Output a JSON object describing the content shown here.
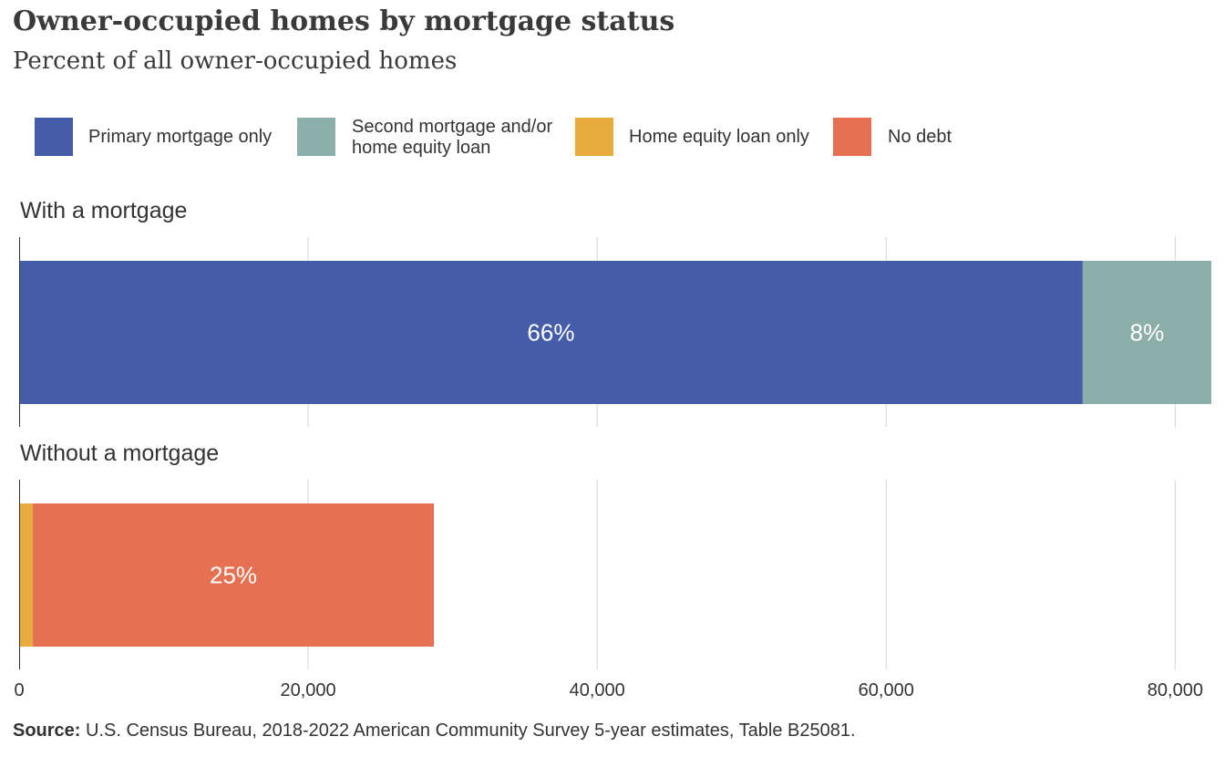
{
  "title": "Owner-occupied  homes by mortgage status",
  "subtitle": "Percent of all owner-occupied homes",
  "colors": {
    "primary": "#455ca9",
    "second": "#8caea9",
    "equity": "#e8ab3e",
    "nodebt": "#e57152",
    "grid": "#d4d4d4",
    "axis": "#333333"
  },
  "legend": [
    {
      "label": "Primary mortgage only",
      "color": "#455ca9"
    },
    {
      "label": "Second mortgage and/or\nhome equity loan",
      "color": "#8caea9"
    },
    {
      "label": "Home equity loan only",
      "color": "#e8ab3e"
    },
    {
      "label": "No debt",
      "color": "#e57152"
    }
  ],
  "panels": [
    {
      "title": "With a mortgage"
    },
    {
      "title": "Without a mortgage"
    }
  ],
  "source": {
    "label": "Source:",
    "text": " U.S. Census Bureau,  2018-2022  American Community Survey 5-year estimates, Table B25081."
  },
  "chart_data": {
    "type": "bar",
    "orientation": "horizontal",
    "stacked": true,
    "xlim": [
      0,
      82500
    ],
    "xticks": [
      0,
      20000,
      40000,
      60000,
      80000
    ],
    "xtick_labels": [
      "0",
      "20,000",
      "40,000",
      "60,000",
      "80,000"
    ],
    "grid": true,
    "legend_position": "top",
    "categories": [
      "With a mortgage",
      "Without a mortgage"
    ],
    "series": [
      {
        "name": "Primary mortgage only",
        "color": "#455ca9",
        "values": [
          73600,
          0
        ],
        "labels": [
          "66%",
          ""
        ]
      },
      {
        "name": "Second mortgage and/or home equity loan",
        "color": "#8caea9",
        "values": [
          8900,
          0
        ],
        "labels": [
          "8%",
          ""
        ]
      },
      {
        "name": "Home equity loan only",
        "color": "#e8ab3e",
        "values": [
          0,
          950
        ],
        "labels": [
          "",
          ""
        ]
      },
      {
        "name": "No debt",
        "color": "#e57152",
        "values": [
          0,
          27750
        ],
        "labels": [
          "",
          "25%"
        ]
      }
    ]
  }
}
